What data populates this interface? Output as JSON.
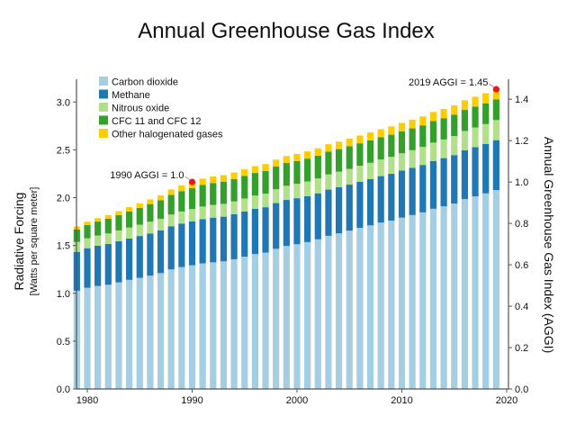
{
  "chart_data": {
    "type": "bar",
    "stacked": true,
    "title": "Annual Greenhouse Gas Index",
    "ylabel": "Radiative Forcing",
    "ylabel_sub": "[Watts per square meter]",
    "y2label": "Annual Greenhouse Gas Index (AGGI)",
    "xlabel": "",
    "ylim": [
      0,
      3.2
    ],
    "y2lim": [
      0,
      1.479
    ],
    "yticks": [
      "0.0",
      "0.5",
      "1.0",
      "1.5",
      "2.0",
      "2.5",
      "3.0"
    ],
    "y2ticks": [
      "0.0",
      "0.2",
      "0.4",
      "0.6",
      "0.8",
      "1.0",
      "1.2",
      "1.4"
    ],
    "xticks": [
      "1980",
      "1990",
      "2000",
      "2010",
      "2020"
    ],
    "legend_position": "top-left",
    "grid": false,
    "categories": [
      1979,
      1980,
      1981,
      1982,
      1983,
      1984,
      1985,
      1986,
      1987,
      1988,
      1989,
      1990,
      1991,
      1992,
      1993,
      1994,
      1995,
      1996,
      1997,
      1998,
      1999,
      2000,
      2001,
      2002,
      2003,
      2004,
      2005,
      2006,
      2007,
      2008,
      2009,
      2010,
      2011,
      2012,
      2013,
      2014,
      2015,
      2016,
      2017,
      2018,
      2019
    ],
    "series": [
      {
        "name": "Carbon dioxide",
        "color": "#a6cee3",
        "values": [
          1.027,
          1.058,
          1.077,
          1.089,
          1.115,
          1.14,
          1.162,
          1.184,
          1.211,
          1.25,
          1.274,
          1.293,
          1.313,
          1.324,
          1.334,
          1.356,
          1.383,
          1.41,
          1.426,
          1.465,
          1.495,
          1.513,
          1.535,
          1.564,
          1.601,
          1.627,
          1.655,
          1.685,
          1.71,
          1.739,
          1.76,
          1.791,
          1.818,
          1.846,
          1.884,
          1.909,
          1.938,
          1.985,
          2.013,
          2.044,
          2.079
        ]
      },
      {
        "name": "Methane",
        "color": "#1f78b4",
        "values": [
          0.406,
          0.413,
          0.42,
          0.426,
          0.429,
          0.432,
          0.437,
          0.442,
          0.447,
          0.451,
          0.455,
          0.459,
          0.463,
          0.467,
          0.467,
          0.47,
          0.472,
          0.473,
          0.474,
          0.478,
          0.481,
          0.481,
          0.481,
          0.481,
          0.483,
          0.482,
          0.481,
          0.481,
          0.483,
          0.486,
          0.489,
          0.492,
          0.494,
          0.496,
          0.499,
          0.504,
          0.507,
          0.51,
          0.515,
          0.518,
          0.522
        ]
      },
      {
        "name": "Nitrous oxide",
        "color": "#b2df8a",
        "values": [
          0.104,
          0.104,
          0.107,
          0.111,
          0.113,
          0.116,
          0.118,
          0.122,
          0.12,
          0.123,
          0.126,
          0.129,
          0.131,
          0.133,
          0.134,
          0.134,
          0.136,
          0.139,
          0.142,
          0.145,
          0.148,
          0.151,
          0.153,
          0.156,
          0.159,
          0.162,
          0.165,
          0.168,
          0.171,
          0.174,
          0.178,
          0.181,
          0.184,
          0.188,
          0.192,
          0.195,
          0.199,
          0.202,
          0.205,
          0.207,
          0.21
        ]
      },
      {
        "name": "CFC 11 and CFC 12",
        "color": "#33a02c",
        "values": [
          0.131,
          0.139,
          0.146,
          0.154,
          0.161,
          0.168,
          0.176,
          0.185,
          0.194,
          0.205,
          0.213,
          0.219,
          0.225,
          0.229,
          0.231,
          0.233,
          0.235,
          0.236,
          0.237,
          0.238,
          0.238,
          0.238,
          0.239,
          0.238,
          0.238,
          0.236,
          0.236,
          0.234,
          0.234,
          0.232,
          0.231,
          0.229,
          0.228,
          0.226,
          0.225,
          0.223,
          0.222,
          0.22,
          0.219,
          0.217,
          0.215
        ]
      },
      {
        "name": "Other halogenated gases",
        "color": "#ffcc00",
        "values": [
          0.031,
          0.034,
          0.036,
          0.038,
          0.041,
          0.044,
          0.047,
          0.049,
          0.053,
          0.057,
          0.061,
          0.064,
          0.066,
          0.068,
          0.069,
          0.07,
          0.07,
          0.071,
          0.072,
          0.072,
          0.073,
          0.074,
          0.075,
          0.076,
          0.077,
          0.078,
          0.079,
          0.081,
          0.083,
          0.085,
          0.087,
          0.089,
          0.091,
          0.093,
          0.095,
          0.097,
          0.099,
          0.101,
          0.103,
          0.105,
          0.107
        ]
      }
    ],
    "annotations": [
      {
        "label": "1990 AGGI = 1.0",
        "year": 1990,
        "color": "#e41a1c"
      },
      {
        "label": "2019 AGGI = 1.45",
        "year": 2019,
        "color": "#e41a1c"
      }
    ]
  }
}
